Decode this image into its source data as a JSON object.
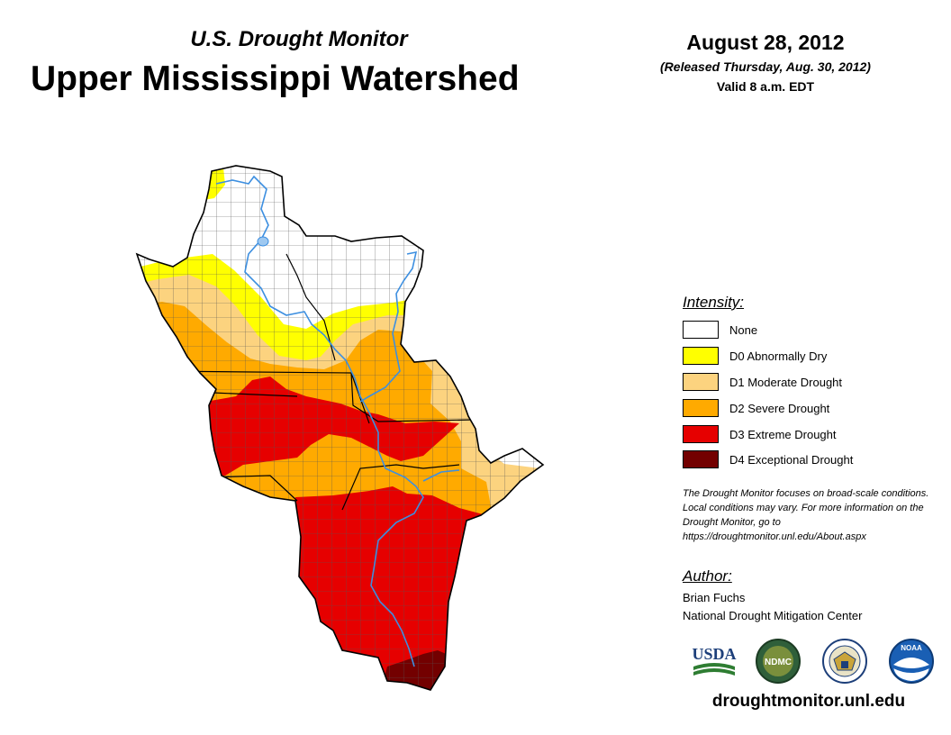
{
  "header": {
    "subtitle": "U.S. Drought Monitor",
    "title": "Upper Mississippi Watershed",
    "date": "August 28, 2012",
    "released": "(Released Thursday, Aug. 30, 2012)",
    "valid": "Valid 8 a.m. EDT"
  },
  "legend": {
    "title": "Intensity:",
    "items": [
      {
        "label": "None",
        "color": "#ffffff"
      },
      {
        "label": "D0 Abnormally Dry",
        "color": "#ffff00"
      },
      {
        "label": "D1 Moderate Drought",
        "color": "#fcd37f"
      },
      {
        "label": "D2 Severe Drought",
        "color": "#ffaa00"
      },
      {
        "label": "D3 Extreme Drought",
        "color": "#e60000"
      },
      {
        "label": "D4 Exceptional Drought",
        "color": "#730000"
      }
    ]
  },
  "note": "The Drought Monitor focuses on broad-scale conditions. Local conditions may vary. For more information on the Drought Monitor, go to https://droughtmonitor.unl.edu/About.aspx",
  "author": {
    "title": "Author:",
    "name": "Brian Fuchs",
    "org": "National Drought Mitigation Center"
  },
  "logos": {
    "usda": "USDA",
    "ndmc": "NDMC",
    "noaa": "NOAA"
  },
  "footer": {
    "url": "droughtmonitor.unl.edu"
  },
  "colors": {
    "river": "#3d8fe0",
    "border": "#000000",
    "county_lines": "#555555"
  }
}
